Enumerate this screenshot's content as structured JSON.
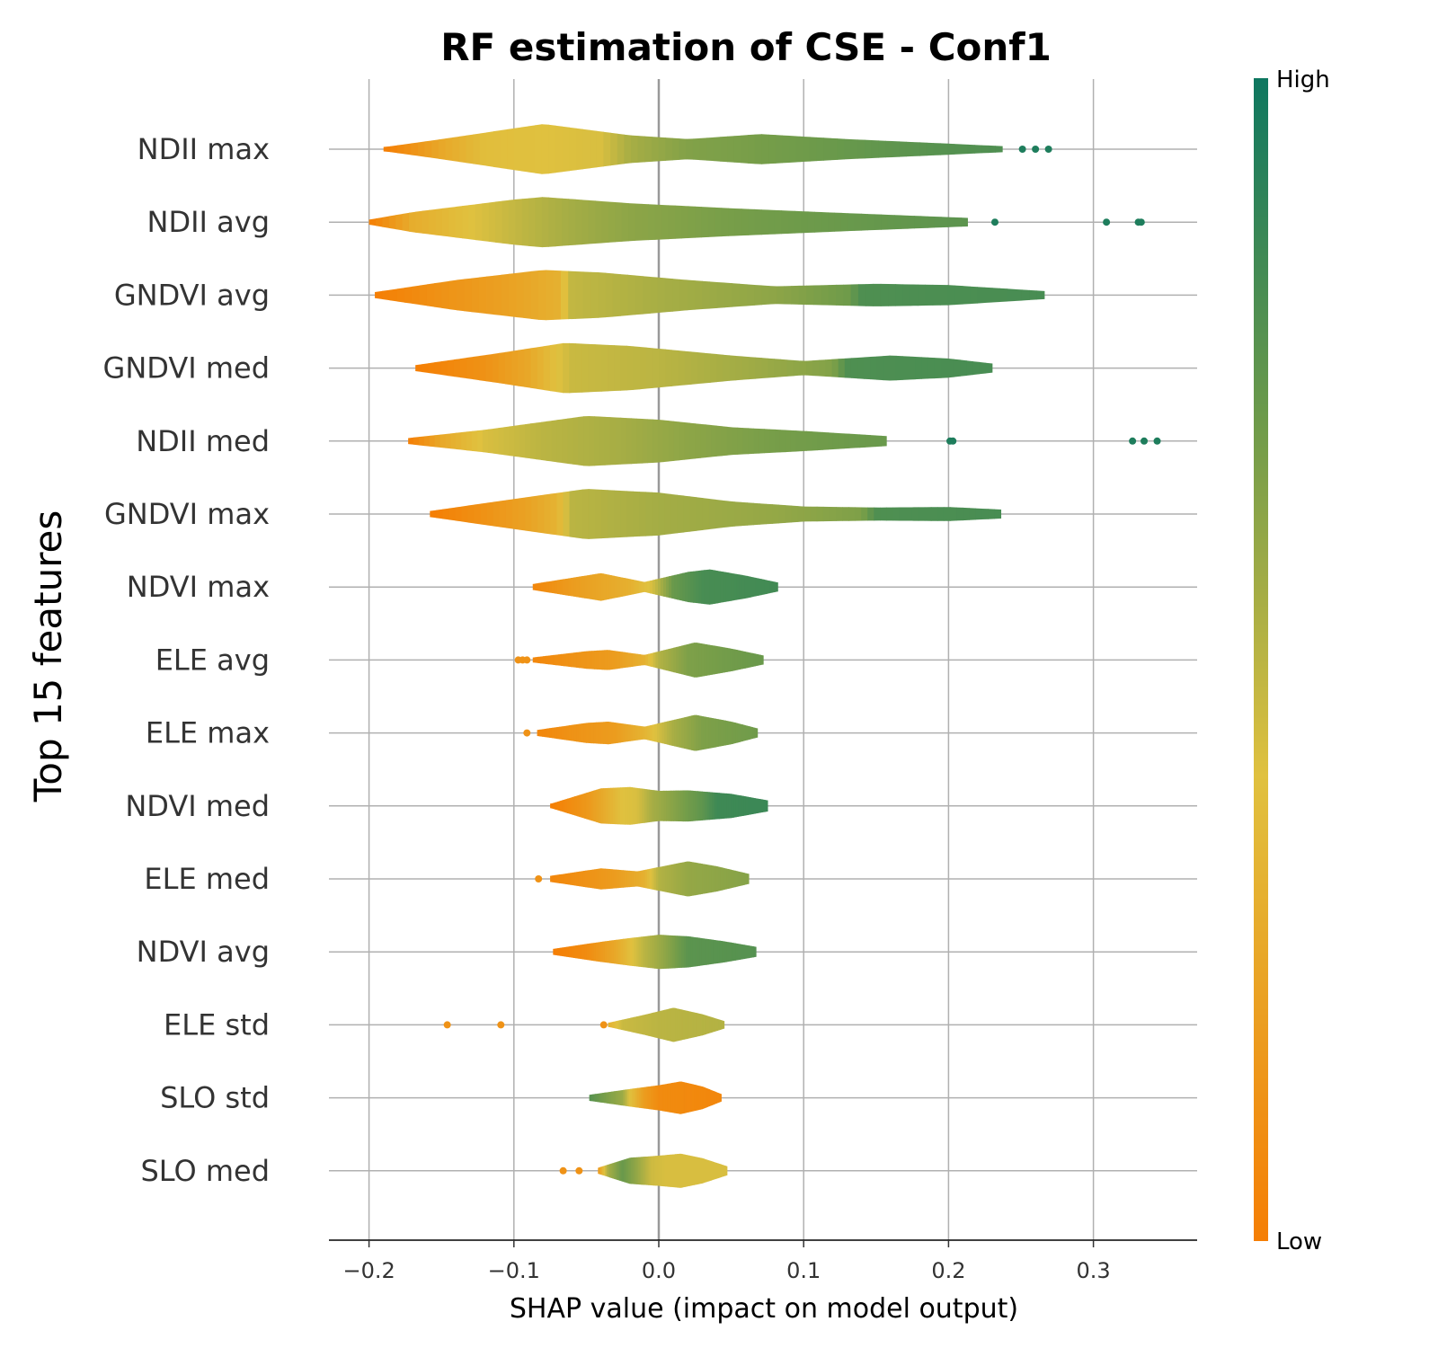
{
  "chart_data": {
    "type": "violin",
    "title": "RF estimation of CSE - Conf1",
    "xlabel": "SHAP value (impact on model output)",
    "ylabel": "Top 15 features",
    "xlim": [
      -0.227,
      0.372
    ],
    "xticks": [
      -0.2,
      -0.1,
      0.0,
      0.1,
      0.2,
      0.3
    ],
    "xtick_labels": [
      "−0.2",
      "−0.1",
      "0.0",
      "0.1",
      "0.2",
      "0.3"
    ],
    "grid": true,
    "colorbar": {
      "high_label": "High",
      "low_label": "Low",
      "high_color": "#0e7760",
      "low_color": "#f57e04"
    },
    "features": [
      {
        "name": "NDII max",
        "min": -0.19,
        "max": 0.237,
        "outliers": [
          0.251,
          0.26,
          0.269
        ],
        "profile": [
          [
            -0.19,
            0.08
          ],
          [
            -0.15,
            0.4
          ],
          [
            -0.08,
            1.0
          ],
          [
            -0.02,
            0.55
          ],
          [
            0.02,
            0.4
          ],
          [
            0.07,
            0.6
          ],
          [
            0.13,
            0.4
          ],
          [
            0.2,
            0.22
          ],
          [
            0.237,
            0.12
          ]
        ],
        "colors": [
          [
            -0.19,
            0.0
          ],
          [
            -0.15,
            0.25
          ],
          [
            -0.12,
            0.38
          ],
          [
            -0.08,
            0.4
          ],
          [
            -0.04,
            0.42
          ],
          [
            -0.02,
            0.55
          ],
          [
            0.02,
            0.65
          ],
          [
            0.1,
            0.7
          ],
          [
            0.2,
            0.78
          ],
          [
            0.237,
            0.8
          ]
        ]
      },
      {
        "name": "NDII avg",
        "min": -0.2,
        "max": 0.213,
        "outliers": [
          0.232,
          0.309,
          0.331,
          0.333
        ],
        "profile": [
          [
            -0.2,
            0.1
          ],
          [
            -0.17,
            0.4
          ],
          [
            -0.1,
            0.9
          ],
          [
            -0.08,
            1.0
          ],
          [
            -0.02,
            0.75
          ],
          [
            0.05,
            0.55
          ],
          [
            0.12,
            0.38
          ],
          [
            0.213,
            0.17
          ]
        ],
        "colors": [
          [
            -0.2,
            0.0
          ],
          [
            -0.17,
            0.28
          ],
          [
            -0.13,
            0.4
          ],
          [
            -0.09,
            0.5
          ],
          [
            -0.06,
            0.56
          ],
          [
            -0.02,
            0.62
          ],
          [
            0.05,
            0.68
          ],
          [
            0.213,
            0.76
          ]
        ]
      },
      {
        "name": "GNDVI avg",
        "min": -0.196,
        "max": 0.266,
        "outliers": [],
        "profile": [
          [
            -0.196,
            0.12
          ],
          [
            -0.14,
            0.6
          ],
          [
            -0.08,
            1.0
          ],
          [
            -0.04,
            0.9
          ],
          [
            0.02,
            0.6
          ],
          [
            0.08,
            0.35
          ],
          [
            0.15,
            0.45
          ],
          [
            0.2,
            0.4
          ],
          [
            0.266,
            0.16
          ]
        ],
        "colors": [
          [
            -0.196,
            0.0
          ],
          [
            -0.15,
            0.12
          ],
          [
            -0.1,
            0.22
          ],
          [
            -0.07,
            0.3
          ],
          [
            -0.06,
            0.48
          ],
          [
            0.0,
            0.55
          ],
          [
            0.08,
            0.62
          ],
          [
            0.13,
            0.7
          ],
          [
            0.14,
            0.8
          ],
          [
            0.266,
            0.82
          ]
        ]
      },
      {
        "name": "GNDVI med",
        "min": -0.168,
        "max": 0.23,
        "outliers": [],
        "profile": [
          [
            -0.168,
            0.12
          ],
          [
            -0.11,
            0.6
          ],
          [
            -0.065,
            1.0
          ],
          [
            -0.02,
            0.88
          ],
          [
            0.05,
            0.5
          ],
          [
            0.1,
            0.28
          ],
          [
            0.16,
            0.5
          ],
          [
            0.2,
            0.38
          ],
          [
            0.23,
            0.18
          ]
        ],
        "colors": [
          [
            -0.168,
            0.0
          ],
          [
            -0.12,
            0.12
          ],
          [
            -0.09,
            0.25
          ],
          [
            -0.07,
            0.4
          ],
          [
            -0.06,
            0.46
          ],
          [
            0.0,
            0.5
          ],
          [
            0.07,
            0.58
          ],
          [
            0.12,
            0.65
          ],
          [
            0.13,
            0.8
          ],
          [
            0.23,
            0.82
          ]
        ]
      },
      {
        "name": "NDII med",
        "min": -0.173,
        "max": 0.157,
        "outliers": [
          0.201,
          0.203,
          0.327,
          0.335,
          0.344
        ],
        "profile": [
          [
            -0.173,
            0.12
          ],
          [
            -0.12,
            0.45
          ],
          [
            -0.05,
            1.0
          ],
          [
            0.0,
            0.85
          ],
          [
            0.05,
            0.55
          ],
          [
            0.1,
            0.4
          ],
          [
            0.157,
            0.2
          ]
        ],
        "colors": [
          [
            -0.173,
            0.0
          ],
          [
            -0.15,
            0.25
          ],
          [
            -0.12,
            0.42
          ],
          [
            -0.08,
            0.5
          ],
          [
            -0.03,
            0.55
          ],
          [
            0.02,
            0.62
          ],
          [
            0.08,
            0.68
          ],
          [
            0.157,
            0.72
          ]
        ]
      },
      {
        "name": "GNDVI max",
        "min": -0.158,
        "max": 0.236,
        "outliers": [],
        "profile": [
          [
            -0.158,
            0.12
          ],
          [
            -0.1,
            0.6
          ],
          [
            -0.05,
            1.0
          ],
          [
            0.0,
            0.85
          ],
          [
            0.05,
            0.5
          ],
          [
            0.1,
            0.3
          ],
          [
            0.15,
            0.26
          ],
          [
            0.2,
            0.28
          ],
          [
            0.236,
            0.18
          ]
        ],
        "colors": [
          [
            -0.158,
            0.0
          ],
          [
            -0.12,
            0.12
          ],
          [
            -0.09,
            0.22
          ],
          [
            -0.07,
            0.32
          ],
          [
            -0.06,
            0.5
          ],
          [
            0.0,
            0.56
          ],
          [
            0.08,
            0.6
          ],
          [
            0.14,
            0.66
          ],
          [
            0.15,
            0.8
          ],
          [
            0.236,
            0.82
          ]
        ]
      },
      {
        "name": "NDVI max",
        "min": -0.087,
        "max": 0.082,
        "outliers": [],
        "profile": [
          [
            -0.087,
            0.12
          ],
          [
            -0.04,
            0.55
          ],
          [
            -0.01,
            0.2
          ],
          [
            0.02,
            0.6
          ],
          [
            0.035,
            0.7
          ],
          [
            0.06,
            0.45
          ],
          [
            0.082,
            0.18
          ]
        ],
        "colors": [
          [
            -0.087,
            0.05
          ],
          [
            -0.06,
            0.18
          ],
          [
            -0.04,
            0.24
          ],
          [
            -0.02,
            0.3
          ],
          [
            -0.005,
            0.42
          ],
          [
            0.01,
            0.72
          ],
          [
            0.03,
            0.82
          ],
          [
            0.082,
            0.84
          ]
        ]
      },
      {
        "name": "ELE avg",
        "min": -0.087,
        "max": 0.072,
        "outliers": [
          -0.097,
          -0.094,
          -0.091
        ],
        "profile": [
          [
            -0.087,
            0.1
          ],
          [
            -0.05,
            0.35
          ],
          [
            -0.035,
            0.4
          ],
          [
            -0.01,
            0.2
          ],
          [
            0.025,
            0.7
          ],
          [
            0.05,
            0.45
          ],
          [
            0.072,
            0.18
          ]
        ],
        "colors": [
          [
            -0.087,
            0.05
          ],
          [
            -0.06,
            0.12
          ],
          [
            -0.03,
            0.18
          ],
          [
            -0.01,
            0.3
          ],
          [
            0.0,
            0.52
          ],
          [
            0.02,
            0.66
          ],
          [
            0.072,
            0.72
          ]
        ]
      },
      {
        "name": "ELE max",
        "min": -0.084,
        "max": 0.068,
        "outliers": [
          -0.091
        ],
        "profile": [
          [
            -0.084,
            0.12
          ],
          [
            -0.05,
            0.4
          ],
          [
            -0.035,
            0.45
          ],
          [
            -0.01,
            0.25
          ],
          [
            0.025,
            0.72
          ],
          [
            0.05,
            0.45
          ],
          [
            0.068,
            0.18
          ]
        ],
        "colors": [
          [
            -0.084,
            0.05
          ],
          [
            -0.06,
            0.12
          ],
          [
            -0.03,
            0.18
          ],
          [
            -0.01,
            0.32
          ],
          [
            0.01,
            0.55
          ],
          [
            0.03,
            0.66
          ],
          [
            0.068,
            0.7
          ]
        ]
      },
      {
        "name": "NDVI med",
        "min": -0.075,
        "max": 0.075,
        "outliers": [],
        "profile": [
          [
            -0.075,
            0.08
          ],
          [
            -0.04,
            0.7
          ],
          [
            -0.02,
            0.75
          ],
          [
            0.0,
            0.6
          ],
          [
            0.02,
            0.62
          ],
          [
            0.05,
            0.48
          ],
          [
            0.075,
            0.22
          ]
        ],
        "colors": [
          [
            -0.075,
            0.0
          ],
          [
            -0.05,
            0.15
          ],
          [
            -0.035,
            0.3
          ],
          [
            -0.025,
            0.4
          ],
          [
            -0.015,
            0.42
          ],
          [
            -0.005,
            0.55
          ],
          [
            0.03,
            0.75
          ],
          [
            0.04,
            0.85
          ],
          [
            0.075,
            0.86
          ]
        ]
      },
      {
        "name": "ELE med",
        "min": -0.075,
        "max": 0.062,
        "outliers": [
          -0.083
        ],
        "profile": [
          [
            -0.075,
            0.12
          ],
          [
            -0.04,
            0.42
          ],
          [
            -0.015,
            0.3
          ],
          [
            0.02,
            0.7
          ],
          [
            0.04,
            0.5
          ],
          [
            0.062,
            0.2
          ]
        ],
        "colors": [
          [
            -0.075,
            0.05
          ],
          [
            -0.05,
            0.12
          ],
          [
            -0.03,
            0.18
          ],
          [
            -0.01,
            0.3
          ],
          [
            0.0,
            0.52
          ],
          [
            0.02,
            0.6
          ],
          [
            0.062,
            0.64
          ]
        ]
      },
      {
        "name": "NDVI avg",
        "min": -0.073,
        "max": 0.067,
        "outliers": [],
        "profile": [
          [
            -0.073,
            0.12
          ],
          [
            -0.04,
            0.4
          ],
          [
            -0.02,
            0.55
          ],
          [
            0.0,
            0.68
          ],
          [
            0.02,
            0.62
          ],
          [
            0.045,
            0.42
          ],
          [
            0.067,
            0.2
          ]
        ],
        "colors": [
          [
            -0.073,
            0.0
          ],
          [
            -0.05,
            0.08
          ],
          [
            -0.03,
            0.25
          ],
          [
            -0.02,
            0.38
          ],
          [
            -0.01,
            0.5
          ],
          [
            0.005,
            0.62
          ],
          [
            0.02,
            0.76
          ],
          [
            0.067,
            0.78
          ]
        ]
      },
      {
        "name": "ELE std",
        "min": -0.035,
        "max": 0.045,
        "outliers": [
          -0.146,
          -0.109,
          -0.038
        ],
        "profile": [
          [
            -0.035,
            0.08
          ],
          [
            -0.01,
            0.4
          ],
          [
            0.01,
            0.68
          ],
          [
            0.03,
            0.42
          ],
          [
            0.045,
            0.15
          ]
        ],
        "colors": [
          [
            -0.035,
            0.3
          ],
          [
            -0.025,
            0.46
          ],
          [
            0.0,
            0.5
          ],
          [
            0.045,
            0.52
          ]
        ]
      },
      {
        "name": "SLO std",
        "min": -0.048,
        "max": 0.043,
        "outliers": [],
        "profile": [
          [
            -0.048,
            0.12
          ],
          [
            -0.02,
            0.35
          ],
          [
            0.0,
            0.5
          ],
          [
            0.015,
            0.65
          ],
          [
            0.03,
            0.45
          ],
          [
            0.043,
            0.15
          ]
        ],
        "colors": [
          [
            -0.048,
            0.78
          ],
          [
            -0.04,
            0.7
          ],
          [
            -0.025,
            0.58
          ],
          [
            -0.02,
            0.4
          ],
          [
            -0.01,
            0.18
          ],
          [
            0.0,
            0.08
          ],
          [
            0.043,
            0.05
          ]
        ]
      },
      {
        "name": "SLO med",
        "min": -0.042,
        "max": 0.047,
        "outliers": [
          -0.066,
          -0.055
        ],
        "profile": [
          [
            -0.042,
            0.12
          ],
          [
            -0.02,
            0.52
          ],
          [
            0.0,
            0.6
          ],
          [
            0.015,
            0.68
          ],
          [
            0.03,
            0.5
          ],
          [
            0.047,
            0.18
          ]
        ],
        "colors": [
          [
            -0.042,
            0.15
          ],
          [
            -0.035,
            0.55
          ],
          [
            -0.025,
            0.72
          ],
          [
            -0.015,
            0.6
          ],
          [
            -0.005,
            0.45
          ],
          [
            0.005,
            0.42
          ],
          [
            0.047,
            0.42
          ]
        ]
      }
    ]
  }
}
